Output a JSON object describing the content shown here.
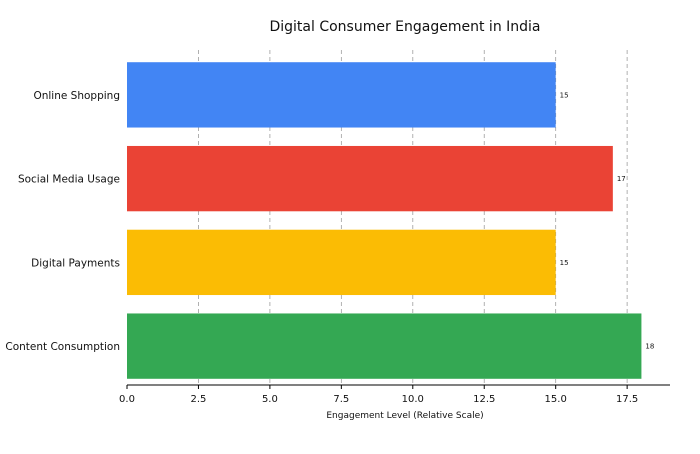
{
  "chart_data": {
    "type": "bar",
    "orientation": "horizontal",
    "title": "Digital Consumer Engagement in India",
    "xlabel": "Engagement Level (Relative Scale)",
    "ylabel": "",
    "categories": [
      "Online Shopping",
      "Social Media Usage",
      "Digital Payments",
      "Content Consumption"
    ],
    "values": [
      15,
      17,
      15,
      18
    ],
    "data_labels": [
      "15",
      "17",
      "15",
      "18"
    ],
    "colors": [
      "#4285f4",
      "#ea4335",
      "#fbbc04",
      "#34a853"
    ],
    "xlim": [
      0,
      19
    ],
    "xticks": [
      0,
      2.5,
      5,
      7.5,
      10,
      12.5,
      15,
      17.5
    ],
    "xtick_labels": [
      "0.0",
      "2.5",
      "5.0",
      "7.5",
      "10.0",
      "12.5",
      "15.0",
      "17.5"
    ],
    "grid": "vertical-dashed",
    "legend": "none"
  }
}
